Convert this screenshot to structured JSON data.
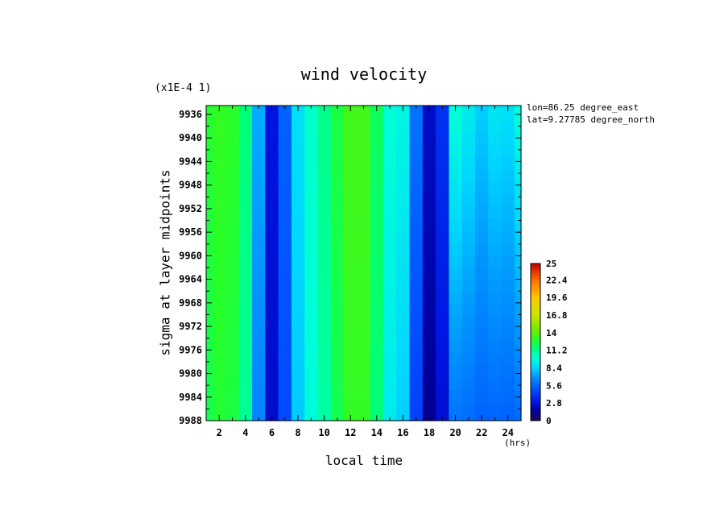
{
  "title": "wind velocity",
  "scale_note": "(x1E-4 1)",
  "meta": {
    "lon": "lon=86.25 degree_east",
    "lat": "lat=9.27785 degree_north"
  },
  "chart_data": {
    "type": "heatmap",
    "title": "wind velocity",
    "xlabel": "local time",
    "x_unit": "(hrs)",
    "ylabel": "sigma at layer midpoints",
    "y_scale_note": "(x1E-4 1)",
    "xlim": [
      1,
      25
    ],
    "ylim": [
      9934.5,
      9988
    ],
    "y_inverted": true,
    "x_ticks": [
      "2",
      "4",
      "6",
      "8",
      "10",
      "12",
      "14",
      "16",
      "18",
      "20",
      "22",
      "24"
    ],
    "y_ticks": [
      "9936",
      "9940",
      "9944",
      "9948",
      "9952",
      "9956",
      "9960",
      "9964",
      "9968",
      "9972",
      "9976",
      "9980",
      "9984",
      "9988"
    ],
    "x": [
      1,
      2,
      3,
      4,
      5,
      6,
      7,
      8,
      9,
      10,
      11,
      12,
      13,
      14,
      15,
      16,
      17,
      18,
      19,
      20,
      21,
      22,
      23,
      24,
      25
    ],
    "y": [
      9936,
      9988
    ],
    "z": [
      [
        12.8,
        13.2,
        13.0,
        11.5,
        7.5,
        3.0,
        5.5,
        8.8,
        10.2,
        11.2,
        12.5,
        13.5,
        13.5,
        12.0,
        10.0,
        9.6,
        6.0,
        2.5,
        4.0,
        10.0,
        9.2,
        8.3,
        9.0,
        8.8,
        10.0
      ],
      [
        12.2,
        12.8,
        12.5,
        11.0,
        6.5,
        2.5,
        4.8,
        8.2,
        9.8,
        10.8,
        12.2,
        13.2,
        13.2,
        11.5,
        9.2,
        8.3,
        4.5,
        1.4,
        2.7,
        6.0,
        5.8,
        5.5,
        5.6,
        5.5,
        5.8
      ]
    ],
    "colorbar": {
      "min": 0,
      "max": 25,
      "tick_labels": [
        "25",
        "22.4",
        "19.6",
        "16.8",
        "14",
        "11.2",
        "8.4",
        "5.6",
        "2.8",
        "0"
      ],
      "tick_values": [
        25,
        22.4,
        19.6,
        16.8,
        14,
        11.2,
        8.4,
        5.6,
        2.8,
        0
      ]
    }
  }
}
